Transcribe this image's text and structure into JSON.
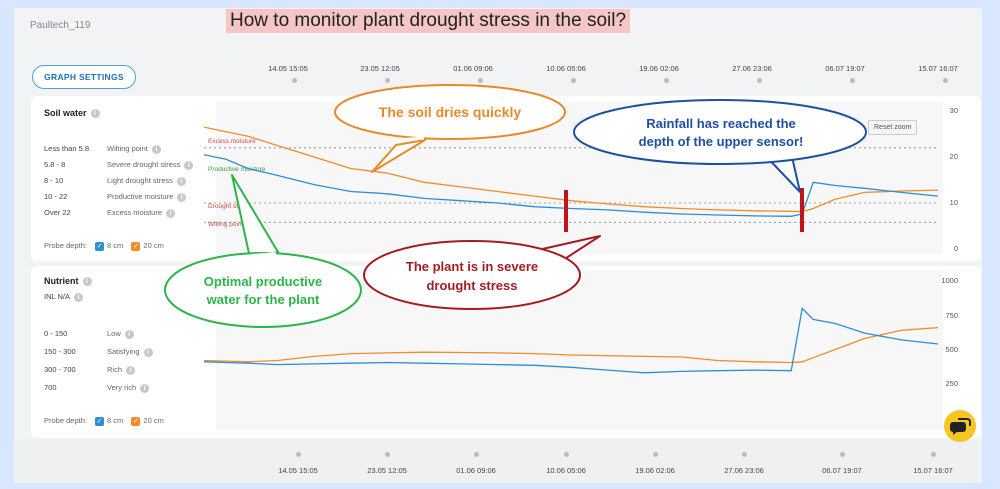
{
  "device": "Paultech_119",
  "headline": "How to monitor plant drought stress in the soil?",
  "graph_settings_label": "GRAPH SETTINGS",
  "timeline": [
    "14.05 15:05",
    "23.05 12:05",
    "01.06 09:06",
    "10.06 05:06",
    "19.06 02:06",
    "27.06 23:06",
    "06.07 19:07",
    "15.07 16:07"
  ],
  "reset_zoom": "Reset zoom",
  "soil": {
    "title": "Soil water",
    "legend": [
      {
        "range": "Less than 5.8",
        "level": "Wilting point"
      },
      {
        "range": "5.8 - 8",
        "level": "Severe drought stress"
      },
      {
        "range": "8 - 10",
        "level": "Light drought stress"
      },
      {
        "range": "10 - 22",
        "level": "Productive moisture"
      },
      {
        "range": "Over 22",
        "level": "Excess moisture"
      }
    ],
    "bands": {
      "excess": "Excess moisture",
      "productive": "Productive moisture",
      "drought": "Drought stress",
      "wilting": "Wilting point"
    },
    "probe_label": "Probe depth:",
    "probe_a": "8 cm",
    "probe_b": "20 cm"
  },
  "nutrient": {
    "title": "Nutrient",
    "inl": "INL N/A",
    "legend": [
      {
        "range": "0 - 150",
        "level": "Low"
      },
      {
        "range": "150 - 300",
        "level": "Satisfying"
      },
      {
        "range": "300 - 700",
        "level": "Rich"
      },
      {
        "range": "700",
        "level": "Very rich"
      }
    ],
    "probe_label": "Probe depth:",
    "probe_a": "8 cm",
    "probe_b": "20 cm"
  },
  "callouts": {
    "dries": "The soil dries quickly",
    "rain1": "Rainfall has reached the",
    "rain2": "depth of the upper sensor!",
    "optimal1": "Optimal productive",
    "optimal2": "water for the plant",
    "severe1": "The plant is in severe",
    "severe2": "drought stress"
  },
  "colors": {
    "series_8cm": "#2c8fd6",
    "series_20cm": "#ef8d2b",
    "marker": "#c0141b",
    "dries": "#e8892a",
    "rain": "#1f4fa0",
    "optimal": "#2bb54a",
    "severe": "#a51b22"
  },
  "chart_data": [
    {
      "type": "line",
      "title": "Soil water",
      "xlabel": "",
      "ylabel": "",
      "x_ticks": [
        "14.05 15:05",
        "23.05 12:05",
        "01.06 09:06",
        "10.06 05:06",
        "19.06 02:06",
        "27.06 23:06",
        "06.07 19:07",
        "15.07 16:07"
      ],
      "ylim": [
        0,
        30
      ],
      "y_ticks": [
        0,
        10,
        20,
        30
      ],
      "thresholds": [
        22,
        10,
        5.8
      ],
      "x": [
        0,
        0.03,
        0.06,
        0.1,
        0.15,
        0.2,
        0.25,
        0.3,
        0.35,
        0.4,
        0.45,
        0.5,
        0.55,
        0.6,
        0.65,
        0.7,
        0.75,
        0.8,
        0.815,
        0.83,
        0.86,
        0.9,
        0.95,
        1.0
      ],
      "series": [
        {
          "name": "8 cm",
          "values": [
            20.5,
            19.5,
            17.5,
            16,
            14,
            12.5,
            12,
            11,
            10.5,
            10,
            9.2,
            8.8,
            8.5,
            8,
            7.6,
            7.4,
            7.2,
            7.1,
            7.6,
            14.5,
            13.8,
            13.2,
            12.3,
            11.5
          ]
        },
        {
          "name": "20 cm",
          "values": [
            26.5,
            25.5,
            24.5,
            22.5,
            20,
            17.5,
            16.5,
            14.5,
            13.5,
            12.5,
            11.5,
            10.5,
            9.8,
            9.2,
            8.8,
            8.5,
            8.3,
            8.2,
            8.1,
            8.8,
            10.8,
            12.3,
            12.6,
            12.8
          ]
        }
      ]
    },
    {
      "type": "line",
      "title": "Nutrient",
      "xlabel": "",
      "ylabel": "",
      "ylim": [
        0,
        1000
      ],
      "y_ticks": [
        250,
        500,
        750,
        1000
      ],
      "x": [
        0,
        0.03,
        0.06,
        0.1,
        0.15,
        0.2,
        0.25,
        0.3,
        0.35,
        0.4,
        0.45,
        0.5,
        0.55,
        0.6,
        0.65,
        0.7,
        0.75,
        0.8,
        0.815,
        0.83,
        0.86,
        0.9,
        0.95,
        1.0
      ],
      "series": [
        {
          "name": "8 cm",
          "values": [
            410,
            405,
            400,
            390,
            395,
            400,
            405,
            400,
            395,
            390,
            385,
            370,
            350,
            330,
            340,
            345,
            350,
            345,
            800,
            720,
            690,
            620,
            570,
            540
          ]
        },
        {
          "name": "20 cm",
          "values": [
            420,
            415,
            410,
            420,
            450,
            470,
            475,
            480,
            478,
            475,
            470,
            460,
            455,
            450,
            445,
            420,
            410,
            405,
            410,
            440,
            500,
            580,
            640,
            660
          ]
        }
      ]
    }
  ]
}
